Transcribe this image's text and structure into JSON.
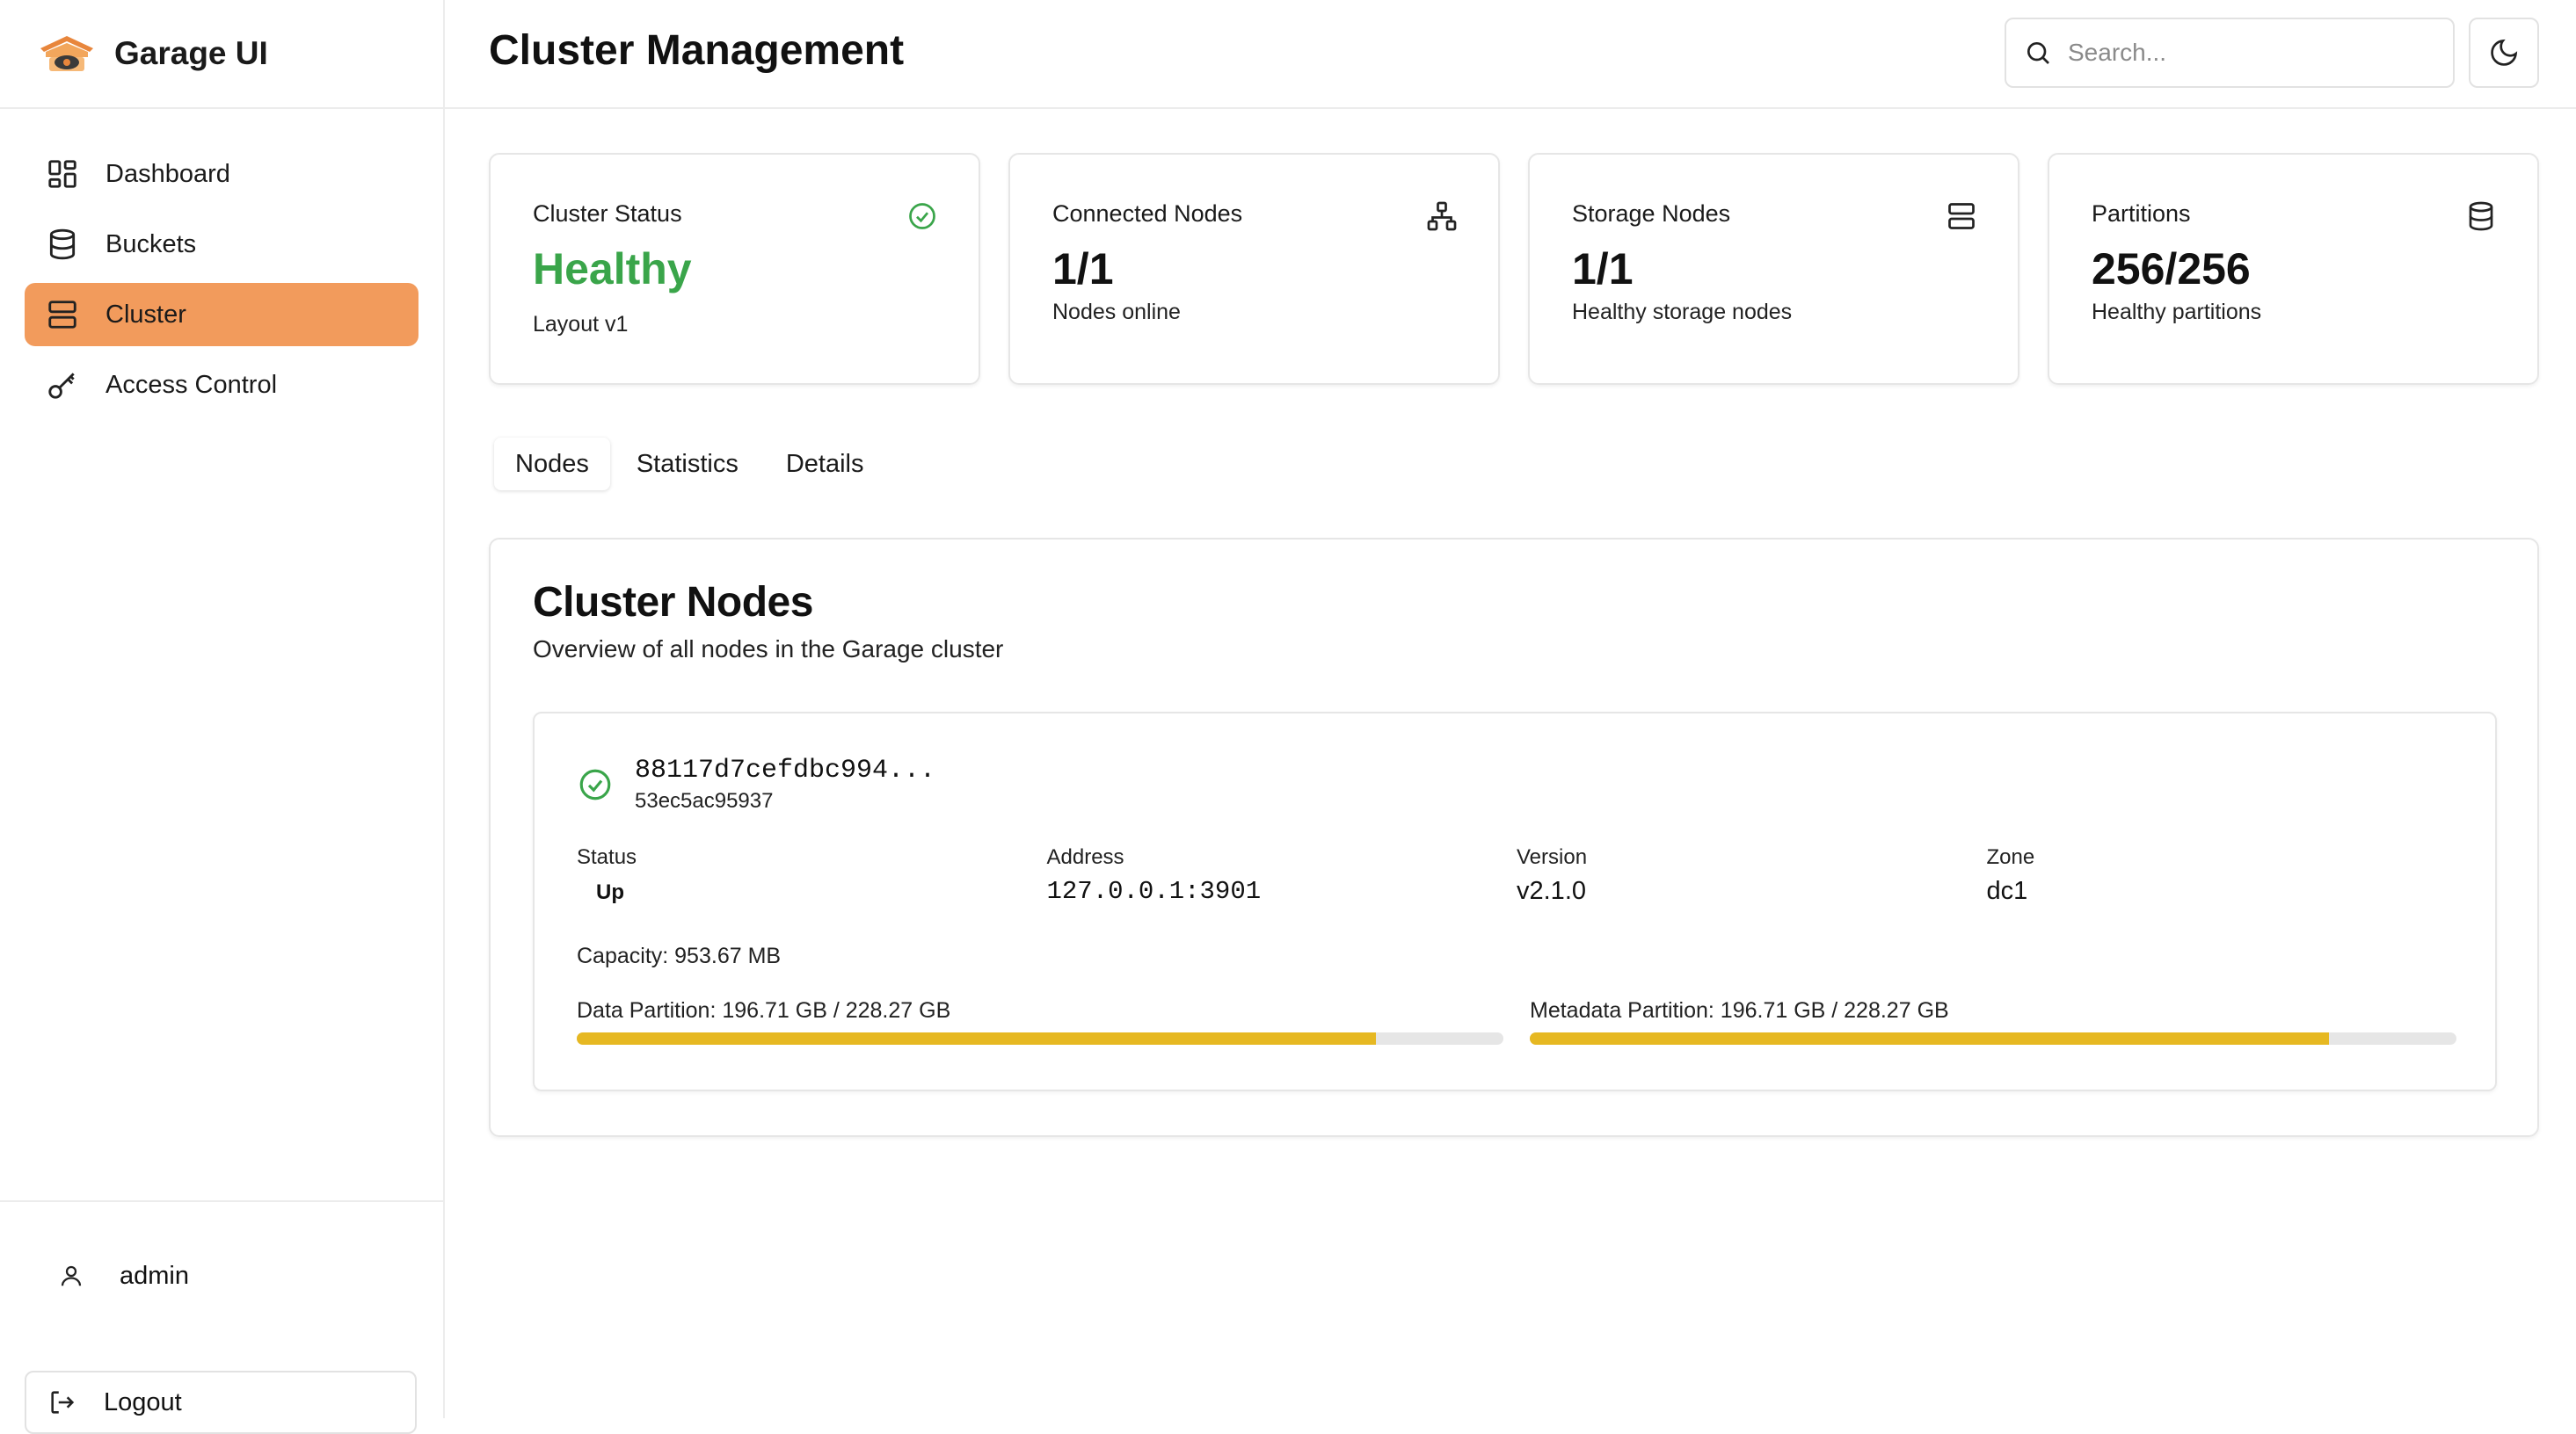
{
  "brand": {
    "name": "Garage UI"
  },
  "sidebar": {
    "items": [
      {
        "label": "Dashboard",
        "icon": "dashboard-icon",
        "active": false
      },
      {
        "label": "Buckets",
        "icon": "database-icon",
        "active": false
      },
      {
        "label": "Cluster",
        "icon": "server-icon",
        "active": true
      },
      {
        "label": "Access Control",
        "icon": "key-icon",
        "active": false
      }
    ],
    "user": {
      "name": "admin"
    },
    "logout_label": "Logout"
  },
  "header": {
    "title": "Cluster Management",
    "search_placeholder": "Search..."
  },
  "stats": [
    {
      "label": "Cluster Status",
      "value": "Healthy",
      "sub": "Layout v1",
      "icon": "check-circle-icon"
    },
    {
      "label": "Connected Nodes",
      "value": "1/1",
      "sub": "Nodes online",
      "icon": "network-icon"
    },
    {
      "label": "Storage Nodes",
      "value": "1/1",
      "sub": "Healthy storage nodes",
      "icon": "server-icon"
    },
    {
      "label": "Partitions",
      "value": "256/256",
      "sub": "Healthy partitions",
      "icon": "database-icon"
    }
  ],
  "tabs": [
    {
      "label": "Nodes",
      "active": true
    },
    {
      "label": "Statistics",
      "active": false
    },
    {
      "label": "Details",
      "active": false
    }
  ],
  "panel": {
    "title": "Cluster Nodes",
    "subtitle": "Overview of all nodes in the Garage cluster"
  },
  "node": {
    "id": "88117d7cefdbc994...",
    "hostname": "53ec5ac95937",
    "status_label": "Status",
    "status_value": "Up",
    "address_label": "Address",
    "address_value": "127.0.0.1:3901",
    "version_label": "Version",
    "version_value": "v2.1.0",
    "zone_label": "Zone",
    "zone_value": "dc1",
    "capacity": "Capacity: 953.67 MB",
    "data_partition": {
      "label": "Data Partition: 196.71 GB / 228.27 GB",
      "fraction": 0.862
    },
    "metadata_partition": {
      "label": "Metadata Partition: 196.71 GB / 228.27 GB",
      "fraction": 0.862
    }
  },
  "colors": {
    "accent": "#f29b5c",
    "healthy": "#3aa54a",
    "bar": "#e6b822"
  }
}
